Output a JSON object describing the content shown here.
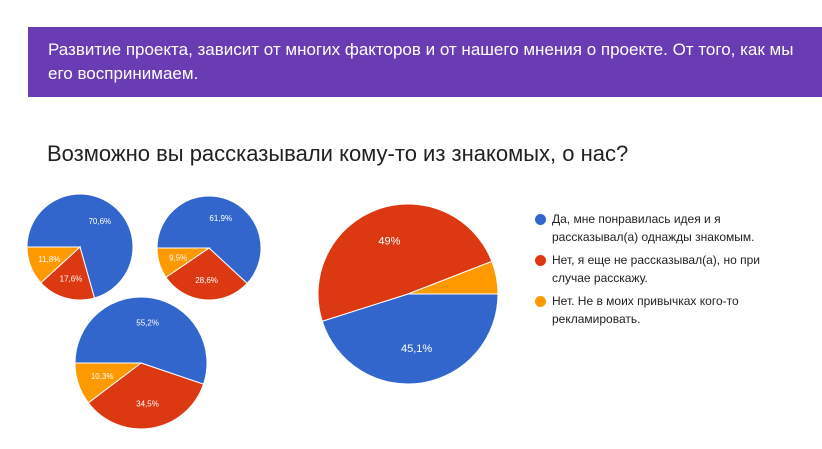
{
  "banner": {
    "text": "Развитие проекта, зависит от многих факторов и от нашего мнения о проекте. От того, как мы его воспринимаем."
  },
  "question": "Возможно вы рассказывали кому-то из знакомых, о нас?",
  "colors": {
    "blue": "#3366cc",
    "red": "#dc3912",
    "orange": "#ff9900",
    "banner": "#6a3cb4"
  },
  "legend": [
    {
      "label": "Да, мне понравилась идея и я рассказывал(а) однажды знакомым.",
      "color": "#3366cc"
    },
    {
      "label": "Нет, я еще не рассказывал(а), но при случае расскажу.",
      "color": "#dc3912"
    },
    {
      "label": "Нет. Не в моих привычках кого-то рекламировать.",
      "color": "#ff9900"
    }
  ],
  "chart_data": [
    {
      "type": "pie",
      "categories": [
        "Да, мне понравилась идея и я рассказывал(а) однажды знакомым.",
        "Нет, я еще не рассказывал(а), но при случае расскажу.",
        "Нет. Не в моих привычках кого-то рекламировать."
      ],
      "values": [
        70.6,
        17.6,
        11.8
      ],
      "labels": [
        "70,6%",
        "17,6%",
        "11,8%"
      ]
    },
    {
      "type": "pie",
      "categories": [
        "Да, мне понравилась идея и я рассказывал(а) однажды знакомым.",
        "Нет, я еще не рассказывал(а), но при случае расскажу.",
        "Нет. Не в моих привычках кого-то рекламировать."
      ],
      "values": [
        61.9,
        28.6,
        9.5
      ],
      "labels": [
        "61,9%",
        "28,6%",
        "9,5%"
      ]
    },
    {
      "type": "pie",
      "categories": [
        "Да, мне понравилась идея и я рассказывал(а) однажды знакомым.",
        "Нет, я еще не рассказывал(а), но при случае расскажу.",
        "Нет. Не в моих привычках кого-то рекламировать."
      ],
      "values": [
        55.2,
        34.5,
        10.3
      ],
      "labels": [
        "55,2%",
        "34,5%",
        "10,3%"
      ]
    },
    {
      "type": "pie",
      "categories": [
        "Да, мне понравилась идея и я рассказывал(а) однажды знакомым.",
        "Нет, я еще не рассказывал(а), но при случае расскажу.",
        "Нет. Не в моих привычках кого-то рекламировать."
      ],
      "values": [
        45.1,
        49,
        5.9
      ],
      "labels": [
        "45,1%",
        "49%",
        ""
      ]
    }
  ]
}
